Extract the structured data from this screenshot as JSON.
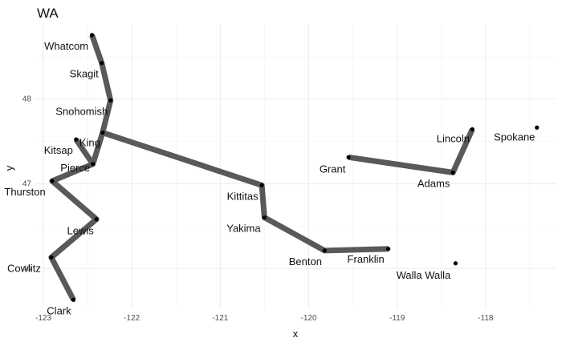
{
  "chart_data": {
    "type": "scatter",
    "title": "WA",
    "xlabel": "x",
    "ylabel": "y",
    "xlim": [
      -123.1,
      -117.2
    ],
    "ylim": [
      45.52,
      48.88
    ],
    "x_ticks": [
      -123,
      -122,
      -121,
      -120,
      -119,
      -118
    ],
    "y_ticks": [
      46,
      47,
      48
    ],
    "grid": true,
    "points": [
      {
        "name": "Whatcom",
        "x": -122.45,
        "y": 48.75
      },
      {
        "name": "Skagit",
        "x": -122.34,
        "y": 48.42
      },
      {
        "name": "Snohomish",
        "x": -122.24,
        "y": 47.98
      },
      {
        "name": "King",
        "x": -122.33,
        "y": 47.6
      },
      {
        "name": "Kitsap",
        "x": -122.63,
        "y": 47.52
      },
      {
        "name": "Pierce",
        "x": -122.44,
        "y": 47.23
      },
      {
        "name": "Thurston",
        "x": -122.9,
        "y": 47.03
      },
      {
        "name": "Lewis",
        "x": -122.4,
        "y": 46.58
      },
      {
        "name": "Cowlitz",
        "x": -122.91,
        "y": 46.13
      },
      {
        "name": "Clark",
        "x": -122.66,
        "y": 45.63
      },
      {
        "name": "Kittitas",
        "x": -120.53,
        "y": 46.98
      },
      {
        "name": "Yakima",
        "x": -120.5,
        "y": 46.6
      },
      {
        "name": "Benton",
        "x": -119.82,
        "y": 46.21
      },
      {
        "name": "Franklin",
        "x": -119.1,
        "y": 46.23
      },
      {
        "name": "Grant",
        "x": -119.55,
        "y": 47.31
      },
      {
        "name": "Adams",
        "x": -118.37,
        "y": 47.13
      },
      {
        "name": "Lincoln",
        "x": -118.15,
        "y": 47.64
      },
      {
        "name": "Spokane",
        "x": -117.42,
        "y": 47.66
      },
      {
        "name": "Walla Walla",
        "x": -118.34,
        "y": 46.06
      }
    ],
    "paths": [
      [
        "Whatcom",
        "Skagit",
        "Snohomish",
        "King",
        "Pierce",
        "Thurston",
        "Lewis",
        "Cowlitz",
        "Clark"
      ],
      [
        "Kitsap",
        "Pierce"
      ],
      [
        "King",
        "Kittitas",
        "Yakima",
        "Benton",
        "Franklin"
      ],
      [
        "Grant",
        "Adams",
        "Lincoln"
      ]
    ]
  }
}
